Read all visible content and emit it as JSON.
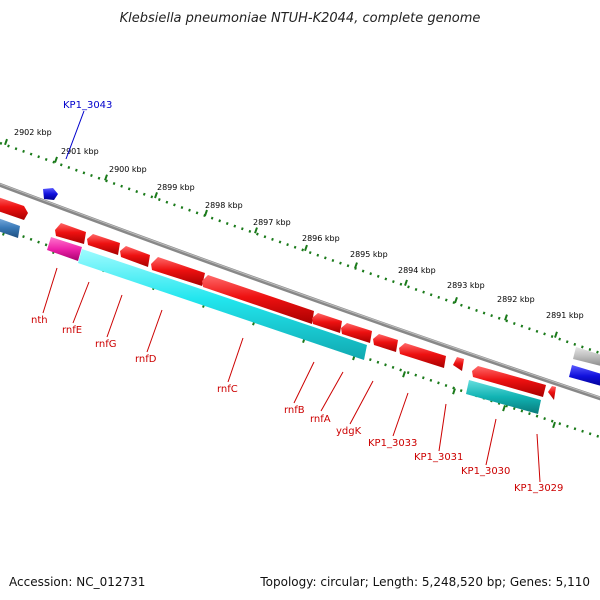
{
  "title": "Klebsiella pneumoniae NTUH-K2044, complete genome",
  "footer": {
    "accession": "Accession: NC_012731",
    "topology": "Topology: circular; Length: 5,248,520 bp; Genes: 5,110"
  },
  "colors": {
    "backbone": "#888888",
    "tick": "#1a7a1a",
    "gene_red": "#ee1111",
    "gene_cyan": "#22e6ee",
    "gene_teal": "#11b3b3",
    "gene_blue": "#1111dd",
    "gene_magenta": "#ee22aa",
    "gene_steel": "#3a7ab8",
    "gene_gray": "#bbbbbb",
    "label_red": "#cc0000",
    "label_blue": "#0000cc"
  },
  "scale_labels": [
    "2902 kbp",
    "2901 kbp",
    "2900 kbp",
    "2899 kbp",
    "2898 kbp",
    "2897 kbp",
    "2896 kbp",
    "2895 kbp",
    "2894 kbp",
    "2893 kbp",
    "2892 kbp",
    "2891 kbp"
  ],
  "gene_labels": [
    {
      "name": "KP1_3043",
      "strand": "forward",
      "color_key": "label_blue"
    },
    {
      "name": "nth",
      "strand": "reverse",
      "color_key": "label_red"
    },
    {
      "name": "rnfE",
      "strand": "reverse",
      "color_key": "label_red"
    },
    {
      "name": "rnfG",
      "strand": "reverse",
      "color_key": "label_red"
    },
    {
      "name": "rnfD",
      "strand": "reverse",
      "color_key": "label_red"
    },
    {
      "name": "rnfC",
      "strand": "reverse",
      "color_key": "label_red"
    },
    {
      "name": "rnfB",
      "strand": "reverse",
      "color_key": "label_red"
    },
    {
      "name": "rnfA",
      "strand": "reverse",
      "color_key": "label_red"
    },
    {
      "name": "ydgK",
      "strand": "reverse",
      "color_key": "label_red"
    },
    {
      "name": "KP1_3033",
      "strand": "reverse",
      "color_key": "label_red"
    },
    {
      "name": "KP1_3031",
      "strand": "reverse",
      "color_key": "label_red"
    },
    {
      "name": "KP1_3030",
      "strand": "reverse",
      "color_key": "label_red"
    },
    {
      "name": "KP1_3029",
      "strand": "reverse",
      "color_key": "label_red"
    }
  ]
}
